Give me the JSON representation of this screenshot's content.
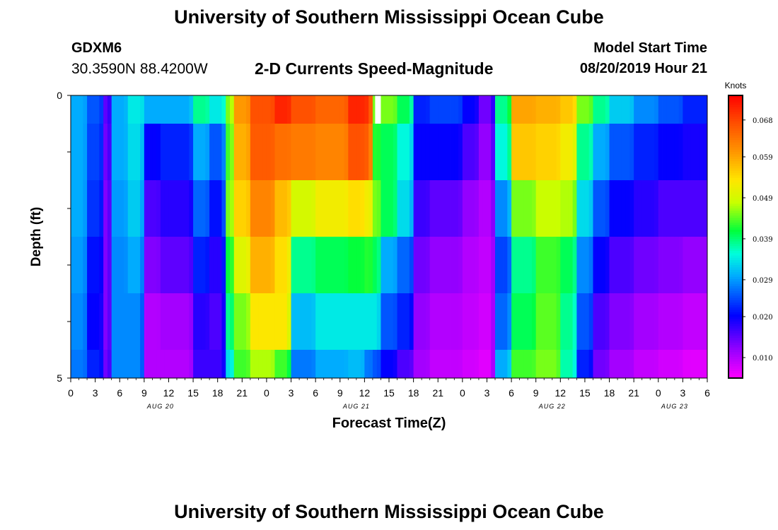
{
  "header": {
    "title": "University of Southern Mississippi Ocean Cube",
    "station_id": "GDXM6",
    "station_coords": "30.3590N 88.4200W",
    "plot_title": "2-D Currents Speed-Magnitude",
    "model_start_label": "Model Start Time",
    "model_start_value": "08/20/2019 Hour 21"
  },
  "footer": {
    "title": "University of Southern Mississippi Ocean Cube"
  },
  "chart_data": {
    "type": "heatmap",
    "xlabel": "Forecast Time(Z)",
    "ylabel": "Depth (ft)",
    "ylim": [
      0,
      5
    ],
    "y_tick_labels": [
      "0",
      "5"
    ],
    "x_tick_labels": [
      "0",
      "3",
      "6",
      "9",
      "12",
      "15",
      "18",
      "21",
      "0",
      "3",
      "6",
      "9",
      "12",
      "15",
      "18",
      "21",
      "0",
      "3",
      "6",
      "9",
      "12",
      "15",
      "18",
      "21",
      "0",
      "3",
      "6"
    ],
    "date_labels": [
      {
        "text": "AUG 20",
        "at_hour": 11
      },
      {
        "text": "AUG 21",
        "at_hour": 35
      },
      {
        "text": "AUG 22",
        "at_hour": 59
      },
      {
        "text": "AUG 23",
        "at_hour": 74
      }
    ],
    "x_range_hours": [
      0,
      78
    ],
    "colorbar": {
      "label": "Knots",
      "range": [
        0.005,
        0.074
      ],
      "ticks": [
        0.068,
        0.059,
        0.049,
        0.039,
        0.029,
        0.02,
        0.01
      ],
      "tick_labels": [
        "0.068",
        "0.059",
        "0.049",
        "0.039",
        "0.029",
        "0.020",
        "0.010"
      ]
    },
    "depth_layers": [
      "0-0.5",
      "0.5-1.5",
      "1.5-2.5",
      "2.5-3.5",
      "3.5-4.5",
      "4.5-5"
    ],
    "time_segments": [
      {
        "t": [
          0,
          2
        ],
        "v": [
          0.03,
          0.03,
          0.03,
          0.029,
          0.028,
          0.027
        ]
      },
      {
        "t": [
          2,
          4
        ],
        "v": [
          0.025,
          0.024,
          0.023,
          0.021,
          0.02,
          0.022
        ]
      },
      {
        "t": [
          4,
          5
        ],
        "v": [
          0.015,
          0.014,
          0.013,
          0.013,
          0.013,
          0.014
        ]
      },
      {
        "t": [
          5,
          7
        ],
        "v": [
          0.03,
          0.03,
          0.029,
          0.028,
          0.028,
          0.028
        ]
      },
      {
        "t": [
          7,
          9
        ],
        "v": [
          0.034,
          0.033,
          0.032,
          0.03,
          0.028,
          0.028
        ]
      },
      {
        "t": [
          9,
          11
        ],
        "v": [
          0.03,
          0.02,
          0.016,
          0.013,
          0.01,
          0.01
        ]
      },
      {
        "t": [
          11,
          15
        ],
        "v": [
          0.03,
          0.022,
          0.018,
          0.015,
          0.011,
          0.01
        ]
      },
      {
        "t": [
          15,
          17
        ],
        "v": [
          0.038,
          0.03,
          0.026,
          0.022,
          0.018,
          0.017
        ]
      },
      {
        "t": [
          17,
          19
        ],
        "v": [
          0.034,
          0.025,
          0.021,
          0.018,
          0.016,
          0.017
        ]
      },
      {
        "t": [
          19,
          20
        ],
        "v": [
          0.045,
          0.043,
          0.045,
          0.041,
          0.038,
          0.033
        ]
      },
      {
        "t": [
          20,
          22
        ],
        "v": [
          0.06,
          0.058,
          0.055,
          0.05,
          0.045,
          0.043
        ]
      },
      {
        "t": [
          22,
          25
        ],
        "v": [
          0.067,
          0.066,
          0.062,
          0.058,
          0.053,
          0.047
        ]
      },
      {
        "t": [
          25,
          27
        ],
        "v": [
          0.071,
          0.064,
          0.057,
          0.054,
          0.053,
          0.043
        ]
      },
      {
        "t": [
          27,
          30
        ],
        "v": [
          0.067,
          0.063,
          0.049,
          0.038,
          0.031,
          0.027
        ]
      },
      {
        "t": [
          30,
          34
        ],
        "v": [
          0.065,
          0.062,
          0.052,
          0.04,
          0.034,
          0.03
        ]
      },
      {
        "t": [
          34,
          36
        ],
        "v": [
          0.071,
          0.067,
          0.054,
          0.041,
          0.034,
          0.031
        ]
      },
      {
        "t": [
          36,
          37
        ],
        "v": [
          0.07,
          0.066,
          0.052,
          0.042,
          0.034,
          0.027
        ]
      },
      {
        "t": [
          37,
          38
        ],
        "v": [
          0.045,
          0.042,
          0.045,
          0.04,
          0.034,
          0.025
        ]
      },
      {
        "t": [
          38,
          40
        ],
        "v": [
          0.045,
          0.04,
          0.04,
          0.03,
          0.025,
          0.02
        ]
      },
      {
        "t": [
          40,
          42
        ],
        "v": [
          0.04,
          0.035,
          0.033,
          0.026,
          0.022,
          0.016
        ]
      },
      {
        "t": [
          42,
          44
        ],
        "v": [
          0.022,
          0.02,
          0.017,
          0.014,
          0.012,
          0.011
        ]
      },
      {
        "t": [
          44,
          48
        ],
        "v": [
          0.024,
          0.02,
          0.015,
          0.012,
          0.01,
          0.009
        ]
      },
      {
        "t": [
          48,
          50
        ],
        "v": [
          0.02,
          0.016,
          0.012,
          0.01,
          0.009,
          0.008
        ]
      },
      {
        "t": [
          50,
          52
        ],
        "v": [
          0.014,
          0.012,
          0.01,
          0.009,
          0.008,
          0.007
        ]
      },
      {
        "t": [
          52,
          54
        ],
        "v": [
          0.038,
          0.035,
          0.028,
          0.024,
          0.026,
          0.03
        ]
      },
      {
        "t": [
          54,
          57
        ],
        "v": [
          0.059,
          0.056,
          0.045,
          0.038,
          0.04,
          0.043
        ]
      },
      {
        "t": [
          57,
          60
        ],
        "v": [
          0.058,
          0.055,
          0.048,
          0.043,
          0.044,
          0.045
        ]
      },
      {
        "t": [
          60,
          62
        ],
        "v": [
          0.056,
          0.052,
          0.047,
          0.04,
          0.038,
          0.037
        ]
      },
      {
        "t": [
          62,
          64
        ],
        "v": [
          0.045,
          0.038,
          0.033,
          0.028,
          0.025,
          0.022
        ]
      },
      {
        "t": [
          64,
          66
        ],
        "v": [
          0.038,
          0.03,
          0.025,
          0.02,
          0.016,
          0.014
        ]
      },
      {
        "t": [
          66,
          69
        ],
        "v": [
          0.032,
          0.025,
          0.02,
          0.016,
          0.013,
          0.011
        ]
      },
      {
        "t": [
          69,
          72
        ],
        "v": [
          0.028,
          0.022,
          0.018,
          0.014,
          0.011,
          0.009
        ]
      },
      {
        "t": [
          72,
          75
        ],
        "v": [
          0.025,
          0.02,
          0.016,
          0.013,
          0.01,
          0.008
        ]
      },
      {
        "t": [
          75,
          78
        ],
        "v": [
          0.022,
          0.019,
          0.016,
          0.012,
          0.009,
          0.007
        ]
      }
    ],
    "missing_cells": [
      {
        "t": [
          37.3,
          38
        ],
        "layer": 0
      }
    ]
  },
  "colors": {
    "missing": "#ffffff",
    "axis": "#000000"
  }
}
